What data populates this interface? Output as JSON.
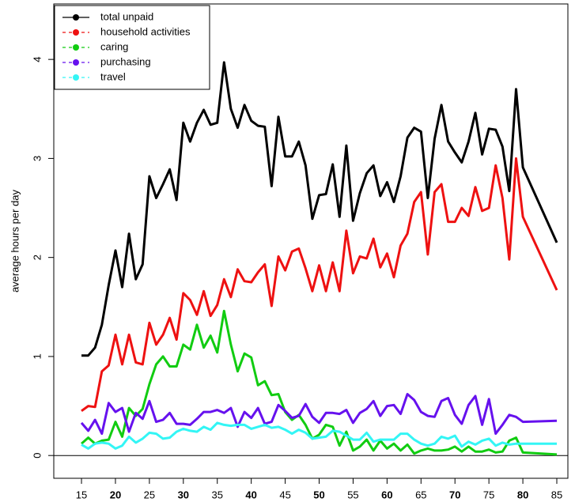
{
  "chart_data": {
    "type": "line",
    "ylabel": "average hours per day",
    "x": [
      15,
      16,
      17,
      18,
      19,
      20,
      21,
      22,
      23,
      24,
      25,
      26,
      27,
      28,
      29,
      30,
      31,
      32,
      33,
      34,
      35,
      36,
      37,
      38,
      39,
      40,
      41,
      42,
      43,
      44,
      45,
      46,
      47,
      48,
      49,
      50,
      51,
      52,
      53,
      54,
      55,
      56,
      57,
      58,
      59,
      60,
      61,
      62,
      63,
      64,
      65,
      66,
      67,
      68,
      69,
      70,
      71,
      72,
      73,
      74,
      75,
      76,
      77,
      78,
      79,
      80,
      85
    ],
    "series": [
      {
        "name": "total unpaid",
        "color": "#000000",
        "values": [
          1.01,
          1.01,
          1.09,
          1.32,
          1.72,
          2.07,
          1.7,
          2.24,
          1.78,
          1.93,
          2.82,
          2.6,
          2.74,
          2.89,
          2.58,
          3.36,
          3.17,
          3.36,
          3.49,
          3.34,
          3.36,
          3.97,
          3.5,
          3.31,
          3.54,
          3.38,
          3.33,
          3.32,
          2.72,
          3.42,
          3.02,
          3.02,
          3.17,
          2.93,
          2.39,
          2.63,
          2.64,
          2.94,
          2.41,
          3.13,
          2.37,
          2.65,
          2.85,
          2.93,
          2.62,
          2.76,
          2.56,
          2.82,
          3.21,
          3.31,
          3.27,
          2.6,
          3.2,
          3.54,
          3.17,
          3.06,
          2.96,
          3.17,
          3.46,
          3.04,
          3.3,
          3.29,
          3.12,
          2.67,
          3.7,
          2.91,
          2.15
        ]
      },
      {
        "name": "household activities",
        "color": "#ee1111",
        "values": [
          0.45,
          0.5,
          0.49,
          0.85,
          0.91,
          1.22,
          0.92,
          1.22,
          0.94,
          0.92,
          1.34,
          1.12,
          1.22,
          1.39,
          1.17,
          1.64,
          1.57,
          1.42,
          1.66,
          1.41,
          1.52,
          1.78,
          1.6,
          1.88,
          1.76,
          1.75,
          1.85,
          1.93,
          1.51,
          2.01,
          1.87,
          2.06,
          2.09,
          1.89,
          1.66,
          1.92,
          1.66,
          1.95,
          1.66,
          2.27,
          1.84,
          2.01,
          1.99,
          2.19,
          1.9,
          2.04,
          1.8,
          2.12,
          2.24,
          2.56,
          2.66,
          2.03,
          2.66,
          2.74,
          2.36,
          2.36,
          2.5,
          2.42,
          2.71,
          2.47,
          2.5,
          2.93,
          2.6,
          1.98,
          3.0,
          2.41,
          1.67
        ]
      },
      {
        "name": "caring",
        "color": "#11cc11",
        "values": [
          0.12,
          0.18,
          0.12,
          0.15,
          0.16,
          0.34,
          0.19,
          0.48,
          0.4,
          0.47,
          0.72,
          0.92,
          1.0,
          0.9,
          0.9,
          1.12,
          1.07,
          1.32,
          1.09,
          1.21,
          1.04,
          1.46,
          1.12,
          0.85,
          1.03,
          0.99,
          0.71,
          0.75,
          0.61,
          0.62,
          0.44,
          0.36,
          0.41,
          0.31,
          0.17,
          0.21,
          0.31,
          0.29,
          0.1,
          0.24,
          0.05,
          0.09,
          0.16,
          0.05,
          0.15,
          0.07,
          0.12,
          0.05,
          0.11,
          0.02,
          0.05,
          0.07,
          0.05,
          0.05,
          0.06,
          0.09,
          0.04,
          0.09,
          0.04,
          0.04,
          0.06,
          0.03,
          0.04,
          0.15,
          0.18,
          0.03,
          0.01
        ]
      },
      {
        "name": "purchasing",
        "color": "#6611ee",
        "values": [
          0.33,
          0.25,
          0.36,
          0.22,
          0.53,
          0.44,
          0.48,
          0.24,
          0.43,
          0.37,
          0.55,
          0.34,
          0.36,
          0.43,
          0.32,
          0.32,
          0.31,
          0.37,
          0.44,
          0.44,
          0.46,
          0.43,
          0.48,
          0.29,
          0.44,
          0.38,
          0.48,
          0.32,
          0.34,
          0.51,
          0.45,
          0.38,
          0.4,
          0.52,
          0.39,
          0.33,
          0.43,
          0.43,
          0.42,
          0.46,
          0.33,
          0.43,
          0.47,
          0.55,
          0.4,
          0.5,
          0.51,
          0.42,
          0.62,
          0.56,
          0.44,
          0.4,
          0.39,
          0.55,
          0.58,
          0.41,
          0.32,
          0.51,
          0.6,
          0.31,
          0.57,
          0.22,
          0.31,
          0.41,
          0.39,
          0.34,
          0.35
        ]
      },
      {
        "name": "travel",
        "color": "#33f5f5",
        "values": [
          0.11,
          0.07,
          0.12,
          0.13,
          0.12,
          0.07,
          0.1,
          0.19,
          0.13,
          0.17,
          0.23,
          0.22,
          0.17,
          0.18,
          0.24,
          0.27,
          0.25,
          0.24,
          0.29,
          0.26,
          0.33,
          0.31,
          0.3,
          0.31,
          0.31,
          0.27,
          0.29,
          0.31,
          0.28,
          0.29,
          0.26,
          0.22,
          0.26,
          0.23,
          0.17,
          0.18,
          0.19,
          0.25,
          0.24,
          0.2,
          0.16,
          0.16,
          0.23,
          0.14,
          0.16,
          0.16,
          0.16,
          0.22,
          0.22,
          0.16,
          0.12,
          0.1,
          0.12,
          0.19,
          0.17,
          0.2,
          0.09,
          0.14,
          0.11,
          0.15,
          0.17,
          0.1,
          0.13,
          0.11,
          0.12,
          0.12,
          0.12
        ]
      }
    ],
    "xlim": [
      10.92,
      86.63
    ],
    "ylim": [
      -0.23,
      4.56
    ],
    "xticks": [
      15,
      20,
      25,
      30,
      35,
      40,
      45,
      50,
      55,
      60,
      65,
      70,
      75,
      80,
      85
    ],
    "yticks": [
      0,
      1,
      2,
      3,
      4
    ],
    "hline": 0,
    "legend": "top-left"
  }
}
